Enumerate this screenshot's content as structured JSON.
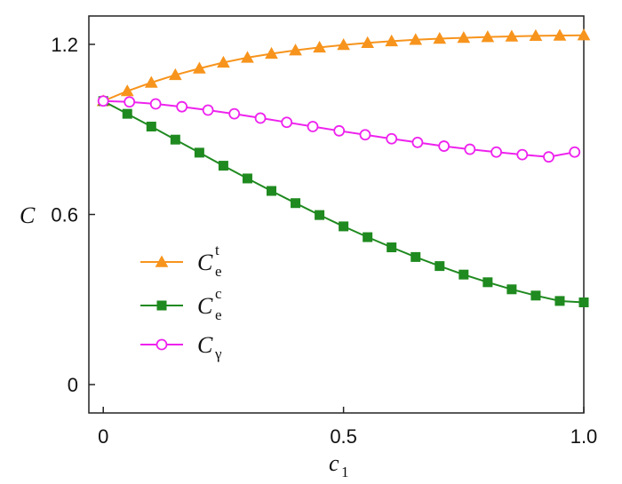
{
  "chart_data": {
    "type": "line",
    "xlabel": "c",
    "xlabel_sub": "1",
    "ylabel": "C",
    "xlim": [
      -0.03,
      1.0
    ],
    "ylim": [
      -0.1,
      1.3
    ],
    "xticks": [
      0,
      0.5,
      1.0
    ],
    "xtick_labels": [
      "0",
      "0.5",
      "1.0"
    ],
    "yticks": [
      0,
      0.6,
      1.2
    ],
    "ytick_labels": [
      "0",
      "0.6",
      "1.2"
    ],
    "grid": false,
    "legend_position": "lower-left",
    "series": [
      {
        "name": "C",
        "name_sub": "e",
        "name_sup": "t",
        "color": "#f7941d",
        "marker": "triangle-filled",
        "x": [
          0.0,
          0.05,
          0.1,
          0.15,
          0.2,
          0.25,
          0.3,
          0.35,
          0.4,
          0.45,
          0.5,
          0.55,
          0.6,
          0.65,
          0.7,
          0.75,
          0.8,
          0.85,
          0.9,
          0.95,
          1.0
        ],
        "y": [
          1.0,
          1.035,
          1.065,
          1.092,
          1.115,
          1.136,
          1.153,
          1.167,
          1.179,
          1.189,
          1.198,
          1.205,
          1.211,
          1.216,
          1.22,
          1.223,
          1.226,
          1.228,
          1.23,
          1.231,
          1.232
        ]
      },
      {
        "name": "C",
        "name_sub": "e",
        "name_sup": "c",
        "color": "#1f8a1f",
        "marker": "square-filled",
        "x": [
          0.0,
          0.05,
          0.1,
          0.15,
          0.2,
          0.25,
          0.3,
          0.35,
          0.4,
          0.45,
          0.5,
          0.55,
          0.6,
          0.65,
          0.7,
          0.75,
          0.8,
          0.85,
          0.9,
          0.95,
          1.0
        ],
        "y": [
          1.0,
          0.955,
          0.91,
          0.864,
          0.818,
          0.772,
          0.727,
          0.683,
          0.64,
          0.598,
          0.558,
          0.52,
          0.484,
          0.45,
          0.418,
          0.388,
          0.361,
          0.336,
          0.314,
          0.295,
          0.29
        ]
      },
      {
        "name": "C",
        "name_sub": "γ",
        "name_sup": "",
        "color": "#ee22ee",
        "marker": "circle-open",
        "x": [
          0.0,
          0.0545,
          0.109,
          0.1636,
          0.218,
          0.2727,
          0.327,
          0.3818,
          0.436,
          0.4909,
          0.545,
          0.6,
          0.654,
          0.709,
          0.763,
          0.818,
          0.872,
          0.927,
          0.981
        ],
        "y": [
          1.0,
          0.997,
          0.99,
          0.98,
          0.968,
          0.955,
          0.94,
          0.925,
          0.91,
          0.895,
          0.881,
          0.867,
          0.854,
          0.841,
          0.83,
          0.82,
          0.811,
          0.803,
          0.82
        ]
      }
    ]
  }
}
